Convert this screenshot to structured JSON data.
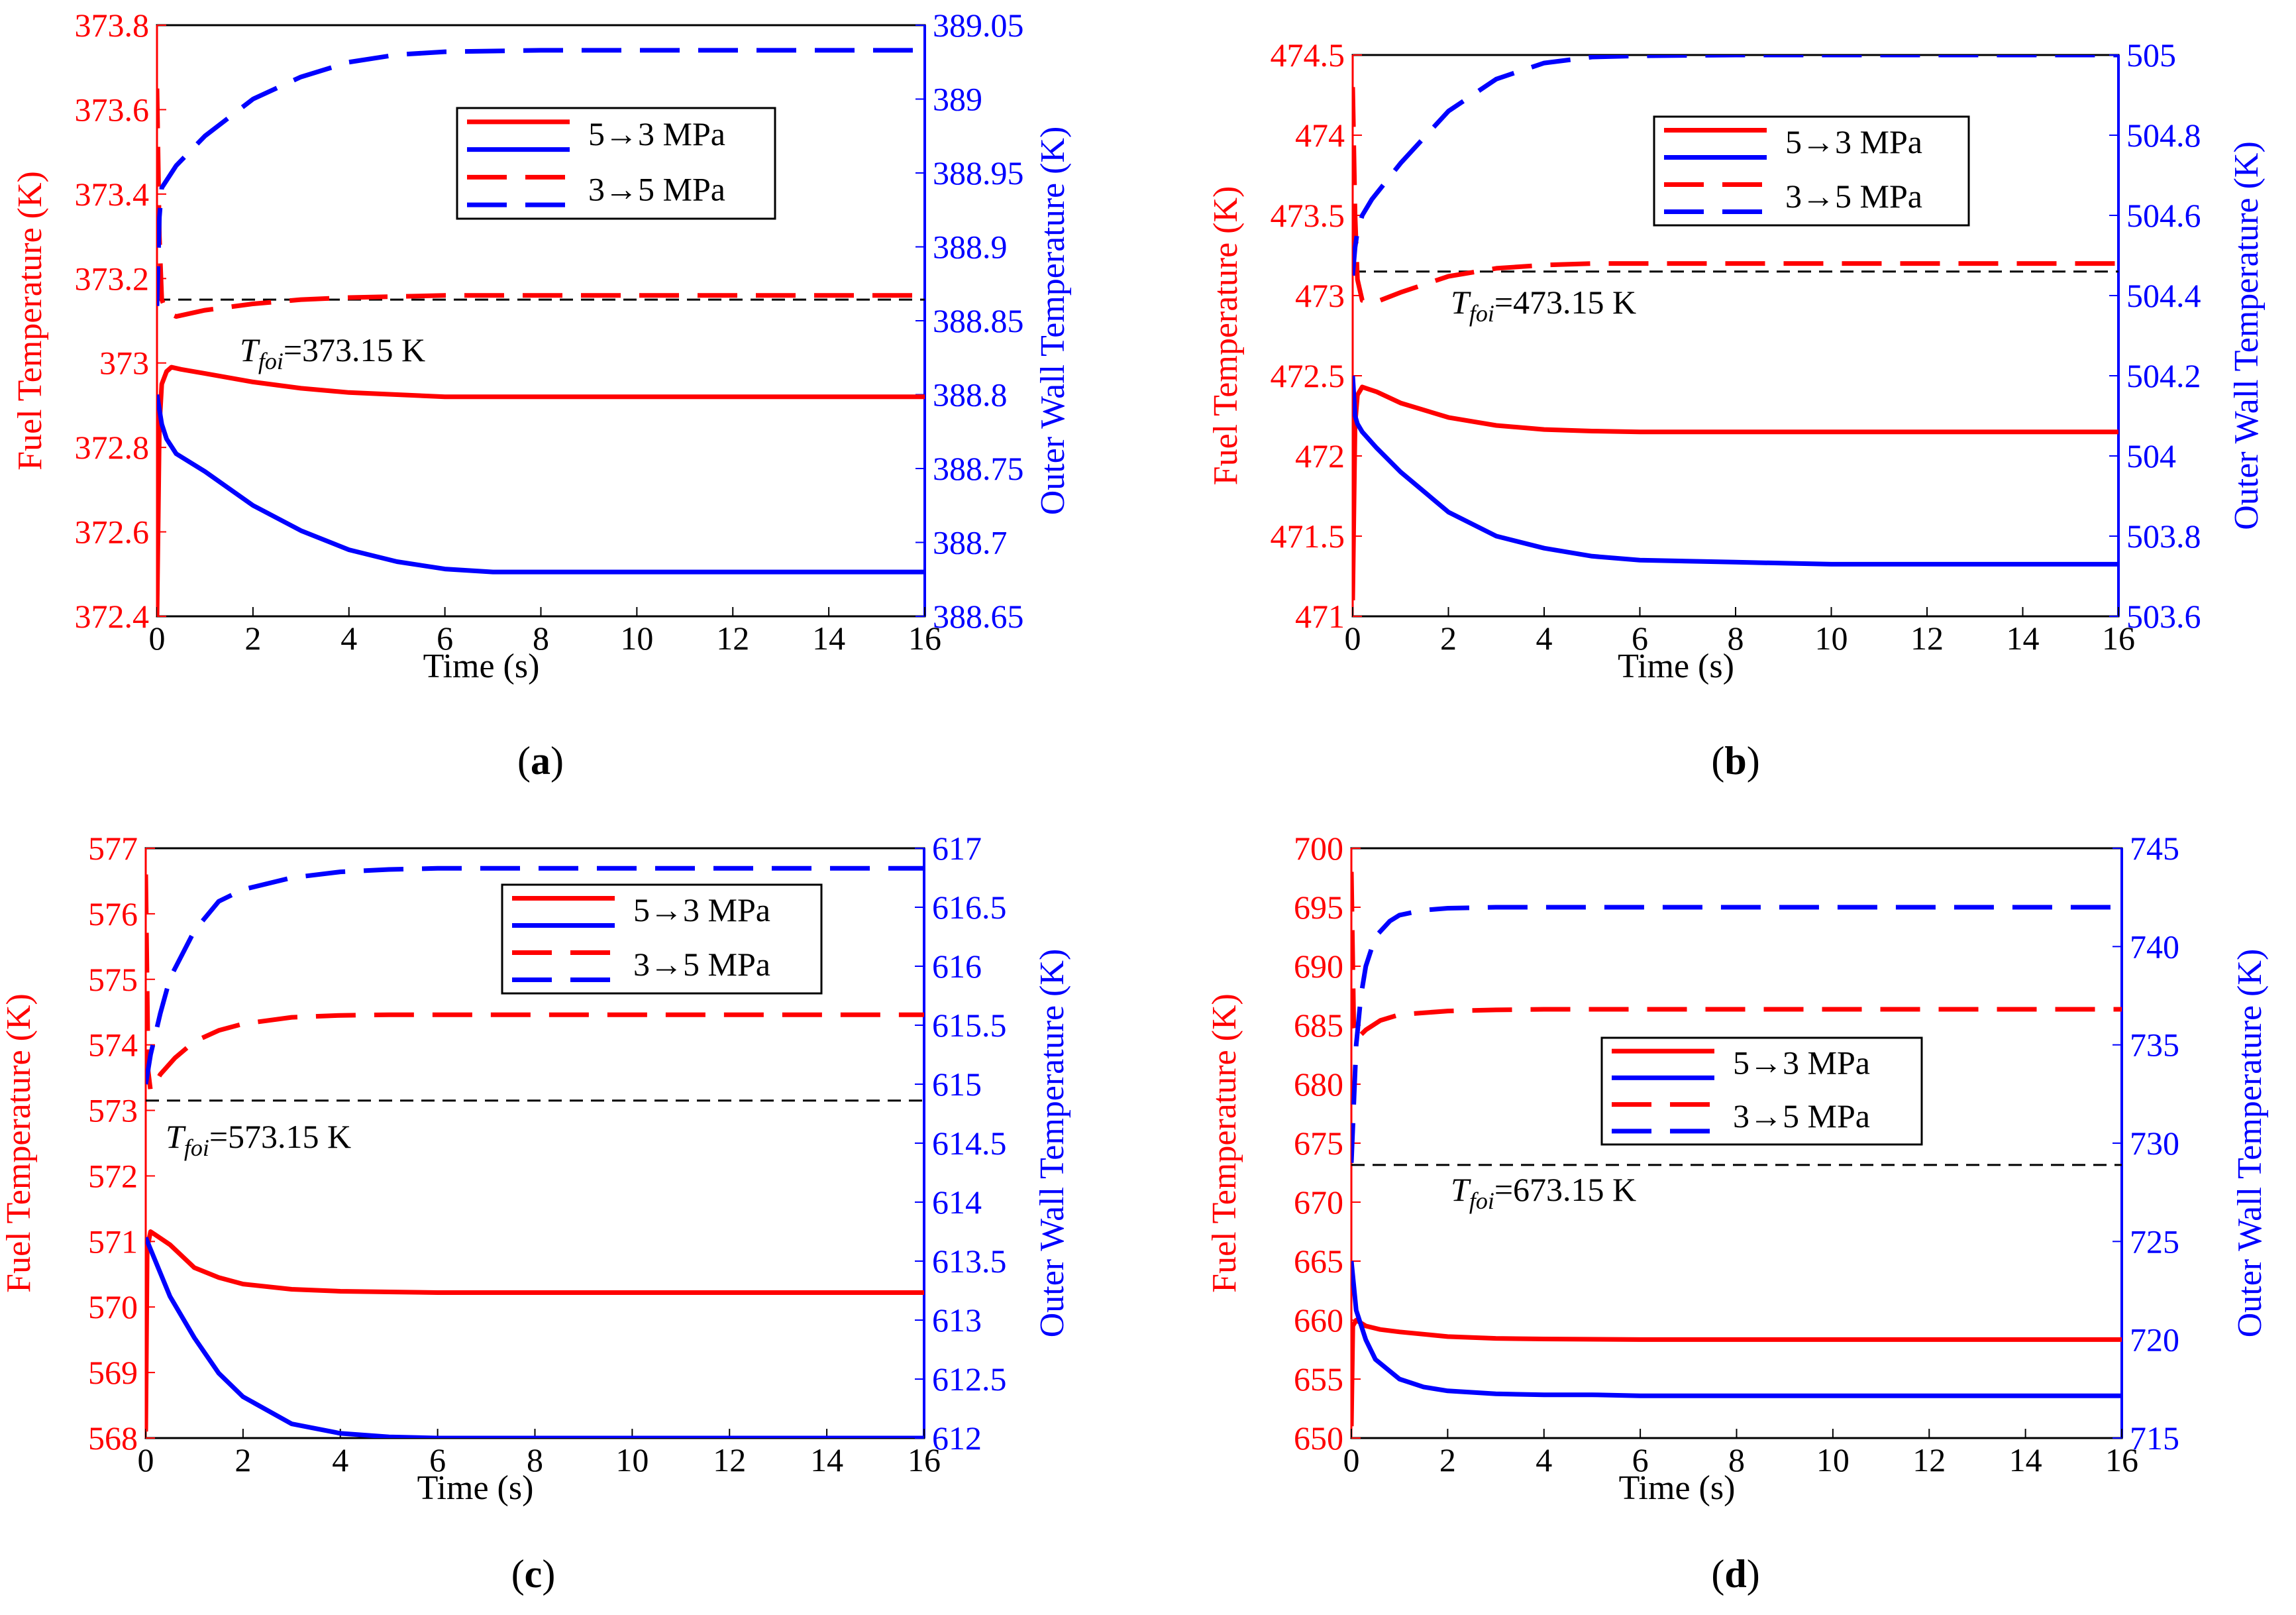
{
  "colors": {
    "fuel": "#ff0000",
    "wall": "#0000ff",
    "reference": "#000000",
    "axis": "#000000"
  },
  "chart_data": [
    {
      "type": "line",
      "panel_label": "a",
      "xlabel": "Time (s)",
      "ylabel_left": "Fuel Temperature (K)",
      "ylabel_right": "Outer Wall Temperature (K)",
      "xlim": [
        0,
        16
      ],
      "xticks": [
        0,
        2,
        4,
        6,
        8,
        10,
        12,
        14,
        16
      ],
      "ylim_left": [
        372.4,
        373.8
      ],
      "yticks_left": [
        "372.4",
        "372.6",
        "372.8",
        "373",
        "373.2",
        "373.4",
        "373.6",
        "373.8"
      ],
      "ylim_right": [
        388.65,
        389.05
      ],
      "yticks_right": [
        "388.65",
        "388.7",
        "388.75",
        "388.8",
        "388.85",
        "388.9",
        "388.95",
        "389",
        "389.05"
      ],
      "legend": {
        "placement": "top-center",
        "entries": [
          "5→3 MPa",
          "3→5 MPa"
        ]
      },
      "reference": {
        "value": 373.15,
        "label_italic": "T",
        "label_sub": "foi",
        "label_rest": "=373.15 K"
      },
      "series": [
        {
          "name": "5→3 MPa",
          "quantity": "fuel",
          "axis": "left",
          "style": "solid",
          "x": [
            0,
            0.05,
            0.1,
            0.2,
            0.3,
            0.5,
            1,
            2,
            3,
            4,
            5,
            6,
            8,
            10,
            12,
            14,
            16
          ],
          "y": [
            372.4,
            372.85,
            372.95,
            372.98,
            372.99,
            372.985,
            372.975,
            372.955,
            372.94,
            372.93,
            372.925,
            372.92,
            372.92,
            372.92,
            372.92,
            372.92,
            372.92
          ]
        },
        {
          "name": "5→3 MPa",
          "quantity": "wall",
          "axis": "right",
          "style": "solid",
          "x": [
            0,
            0.05,
            0.1,
            0.2,
            0.4,
            1,
            2,
            3,
            4,
            5,
            6,
            7,
            8,
            10,
            12,
            14,
            16
          ],
          "y": [
            388.8,
            388.79,
            388.78,
            388.77,
            388.76,
            388.748,
            388.725,
            388.708,
            388.695,
            388.687,
            388.682,
            388.68,
            388.68,
            388.68,
            388.68,
            388.68,
            388.68
          ]
        },
        {
          "name": "3→5 MPa",
          "quantity": "fuel",
          "axis": "left",
          "style": "dashed",
          "x": [
            0,
            0.05,
            0.1,
            0.2,
            0.4,
            1,
            2,
            3,
            4,
            6,
            8,
            10,
            12,
            14,
            16
          ],
          "y": [
            373.65,
            373.3,
            373.15,
            373.12,
            373.11,
            373.125,
            373.14,
            373.15,
            373.155,
            373.16,
            373.16,
            373.16,
            373.16,
            373.16,
            373.16
          ]
        },
        {
          "name": "3→5 MPa",
          "quantity": "wall",
          "axis": "right",
          "style": "dashed",
          "x": [
            0,
            0.05,
            0.1,
            0.2,
            0.4,
            1,
            2,
            3,
            4,
            5,
            6,
            8,
            10,
            12,
            14,
            16
          ],
          "y": [
            388.86,
            388.92,
            388.94,
            388.945,
            388.955,
            388.975,
            389.0,
            389.015,
            389.025,
            389.03,
            389.032,
            389.033,
            389.033,
            389.033,
            389.033,
            389.033
          ]
        }
      ]
    },
    {
      "type": "line",
      "panel_label": "b",
      "xlabel": "Time (s)",
      "ylabel_left": "Fuel Temperature (K)",
      "ylabel_right": "Outer Wall Temperature (K)",
      "xlim": [
        0,
        16
      ],
      "xticks": [
        0,
        2,
        4,
        6,
        8,
        10,
        12,
        14,
        16
      ],
      "ylim_left": [
        471,
        474.5
      ],
      "yticks_left": [
        "471",
        "471.5",
        "472",
        "472.5",
        "473",
        "473.5",
        "474",
        "474.5"
      ],
      "ylim_right": [
        503.6,
        505
      ],
      "yticks_right": [
        "503.6",
        "503.8",
        "504",
        "504.2",
        "504.4",
        "504.6",
        "504.8",
        "505"
      ],
      "legend": {
        "placement": "top-center",
        "entries": [
          "5→3 MPa",
          "3→5 MPa"
        ]
      },
      "reference": {
        "value": 473.15,
        "label_italic": "T",
        "label_sub": "foi",
        "label_rest": "=473.15 K"
      },
      "series": [
        {
          "name": "5→3 MPa",
          "quantity": "fuel",
          "axis": "left",
          "style": "solid",
          "x": [
            0,
            0.05,
            0.1,
            0.2,
            0.3,
            0.5,
            1,
            2,
            3,
            4,
            5,
            6,
            8,
            10,
            12,
            14,
            16
          ],
          "y": [
            471.1,
            472.2,
            472.38,
            472.43,
            472.42,
            472.4,
            472.33,
            472.24,
            472.19,
            472.165,
            472.155,
            472.15,
            472.15,
            472.15,
            472.15,
            472.15,
            472.15
          ]
        },
        {
          "name": "5→3 MPa",
          "quantity": "wall",
          "axis": "right",
          "style": "solid",
          "x": [
            0,
            0.05,
            0.1,
            0.2,
            0.5,
            1,
            2,
            3,
            4,
            5,
            6,
            8,
            10,
            12,
            14,
            16
          ],
          "y": [
            504.2,
            504.1,
            504.08,
            504.06,
            504.02,
            503.96,
            503.86,
            503.8,
            503.77,
            503.75,
            503.74,
            503.735,
            503.73,
            503.73,
            503.73,
            503.73
          ]
        },
        {
          "name": "3→5 MPa",
          "quantity": "fuel",
          "axis": "left",
          "style": "dashed",
          "x": [
            0,
            0.05,
            0.1,
            0.2,
            0.4,
            1,
            2,
            3,
            4,
            5,
            6,
            8,
            10,
            12,
            14,
            16
          ],
          "y": [
            474.3,
            473.5,
            473.1,
            472.97,
            472.95,
            473.02,
            473.12,
            473.17,
            473.19,
            473.2,
            473.2,
            473.2,
            473.2,
            473.2,
            473.2,
            473.2
          ]
        },
        {
          "name": "3→5 MPa",
          "quantity": "wall",
          "axis": "right",
          "style": "dashed",
          "x": [
            0,
            0.05,
            0.1,
            0.2,
            0.4,
            1,
            2,
            3,
            4,
            5,
            6,
            8,
            10,
            12,
            14,
            16
          ],
          "y": [
            504.45,
            504.52,
            504.56,
            504.6,
            504.64,
            504.73,
            504.86,
            504.94,
            504.98,
            504.995,
            504.998,
            505,
            505,
            505,
            505,
            505
          ]
        }
      ]
    },
    {
      "type": "line",
      "panel_label": "c",
      "xlabel": "Time (s)",
      "ylabel_left": "Fuel Temperature (K)",
      "ylabel_right": "Outer Wall Temperature (K)",
      "xlim": [
        0,
        16
      ],
      "xticks": [
        0,
        2,
        4,
        6,
        8,
        10,
        12,
        14,
        16
      ],
      "ylim_left": [
        568,
        577
      ],
      "yticks_left": [
        "568",
        "569",
        "570",
        "571",
        "572",
        "573",
        "574",
        "575",
        "576",
        "577"
      ],
      "ylim_right": [
        612,
        617
      ],
      "yticks_right": [
        "612",
        "612.5",
        "613",
        "613.5",
        "614",
        "614.5",
        "615",
        "615.5",
        "616",
        "616.5",
        "617"
      ],
      "legend": {
        "placement": "top-right",
        "entries": [
          "5→3 MPa",
          "3→5 MPa"
        ]
      },
      "reference": {
        "value": 573.15,
        "label_italic": "T",
        "label_sub": "foi",
        "label_rest": "=573.15 K"
      },
      "series": [
        {
          "name": "5→3 MPa",
          "quantity": "fuel",
          "axis": "left",
          "style": "solid",
          "x": [
            0,
            0.03,
            0.1,
            0.2,
            0.5,
            1,
            1.5,
            2,
            3,
            4,
            5,
            6,
            8,
            10,
            12,
            14,
            16
          ],
          "y": [
            568.1,
            570.9,
            571.15,
            571.1,
            570.95,
            570.6,
            570.45,
            570.35,
            570.27,
            570.24,
            570.23,
            570.22,
            570.22,
            570.22,
            570.22,
            570.22,
            570.22
          ]
        },
        {
          "name": "5→3 MPa",
          "quantity": "wall",
          "axis": "right",
          "style": "solid",
          "x": [
            0,
            0.1,
            0.3,
            0.5,
            1,
            1.5,
            2,
            3,
            4,
            5,
            6,
            8,
            10,
            12,
            14,
            16
          ],
          "y": [
            613.7,
            613.6,
            613.4,
            613.2,
            612.85,
            612.55,
            612.35,
            612.12,
            612.04,
            612.01,
            612.0,
            612.0,
            612.0,
            612.0,
            612.0,
            612.0
          ]
        },
        {
          "name": "3→5 MPa",
          "quantity": "fuel",
          "axis": "left",
          "style": "dashed",
          "x": [
            0,
            0.05,
            0.1,
            0.3,
            0.6,
            1,
            1.5,
            2,
            3,
            4,
            5,
            6,
            8,
            10,
            12,
            14,
            16
          ],
          "y": [
            576.6,
            573.6,
            573.3,
            573.55,
            573.8,
            574.05,
            574.22,
            574.32,
            574.42,
            574.45,
            574.46,
            574.46,
            574.46,
            574.46,
            574.46,
            574.46,
            574.46
          ]
        },
        {
          "name": "3→5 MPa",
          "quantity": "wall",
          "axis": "right",
          "style": "dashed",
          "x": [
            0,
            0.1,
            0.3,
            0.5,
            1,
            1.5,
            2,
            3,
            4,
            5,
            6,
            8,
            10,
            12,
            14,
            16
          ],
          "y": [
            615.0,
            615.25,
            615.6,
            615.9,
            616.3,
            616.55,
            616.65,
            616.75,
            616.8,
            616.82,
            616.83,
            616.83,
            616.83,
            616.83,
            616.83,
            616.83
          ]
        }
      ]
    },
    {
      "type": "line",
      "panel_label": "d",
      "xlabel": "Time (s)",
      "ylabel_left": "Fuel Temperature (K)",
      "ylabel_right": "Outer Wall Temperature (K)",
      "xlim": [
        0,
        16
      ],
      "xticks": [
        0,
        2,
        4,
        6,
        8,
        10,
        12,
        14,
        16
      ],
      "ylim_left": [
        650,
        700
      ],
      "yticks_left": [
        "650",
        "655",
        "660",
        "665",
        "670",
        "675",
        "680",
        "685",
        "690",
        "695",
        "700"
      ],
      "ylim_right": [
        715,
        745
      ],
      "yticks_right": [
        "715",
        "720",
        "725",
        "730",
        "735",
        "740",
        "745"
      ],
      "legend": {
        "placement": "center",
        "entries": [
          "5→3 MPa",
          "3→5 MPa"
        ]
      },
      "reference": {
        "value": 673.15,
        "label_italic": "T",
        "label_sub": "foi",
        "label_rest": "=673.15 K"
      },
      "series": [
        {
          "name": "5→3 MPa",
          "quantity": "fuel",
          "axis": "left",
          "style": "solid",
          "x": [
            0,
            0.03,
            0.1,
            0.3,
            0.6,
            1,
            2,
            3,
            4,
            6,
            8,
            10,
            12,
            14,
            16
          ],
          "y": [
            651,
            659.5,
            660.0,
            659.5,
            659.2,
            659.0,
            658.6,
            658.45,
            658.4,
            658.35,
            658.35,
            658.35,
            658.35,
            658.35,
            658.35
          ]
        },
        {
          "name": "5→3 MPa",
          "quantity": "wall",
          "axis": "right",
          "style": "solid",
          "x": [
            0,
            0.1,
            0.3,
            0.5,
            1,
            1.5,
            2,
            3,
            4,
            5,
            6,
            8,
            10,
            12,
            14,
            16
          ],
          "y": [
            724,
            721.5,
            720.0,
            719.0,
            718.0,
            717.6,
            717.4,
            717.25,
            717.2,
            717.2,
            717.15,
            717.15,
            717.15,
            717.15,
            717.15,
            717.15
          ]
        },
        {
          "name": "3→5 MPa",
          "quantity": "fuel",
          "axis": "left",
          "style": "dashed",
          "x": [
            0,
            0.05,
            0.1,
            0.3,
            0.6,
            1,
            2,
            3,
            4,
            6,
            8,
            10,
            12,
            14,
            16
          ],
          "y": [
            698,
            685,
            683.8,
            684.6,
            685.4,
            685.9,
            686.2,
            686.3,
            686.35,
            686.35,
            686.35,
            686.35,
            686.35,
            686.35,
            686.35
          ]
        },
        {
          "name": "3→5 MPa",
          "quantity": "wall",
          "axis": "right",
          "style": "dashed",
          "x": [
            0,
            0.1,
            0.2,
            0.3,
            0.5,
            0.8,
            1,
            1.5,
            2,
            3,
            4,
            6,
            8,
            10,
            12,
            14,
            16
          ],
          "y": [
            729,
            735,
            737.5,
            739.0,
            740.5,
            741.3,
            741.6,
            741.85,
            741.95,
            742.0,
            742.0,
            742.0,
            742.0,
            742.0,
            742.0,
            742.0,
            742.0
          ]
        }
      ]
    }
  ]
}
